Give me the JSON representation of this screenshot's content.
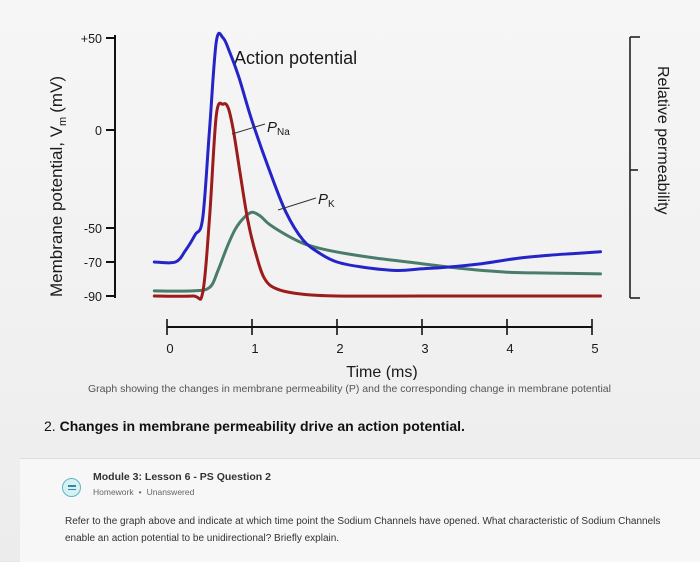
{
  "chart_data": {
    "type": "line",
    "title": "Action potential",
    "xlabel": "Time (ms)",
    "ylabel": "Membrane potential, V",
    "ylabel_subscript": "m",
    "ylabel_unit": "(mV)",
    "right_label": "Relative permeability",
    "x_ticks": [
      "0",
      "1",
      "2",
      "3",
      "4",
      "5"
    ],
    "y_ticks": [
      "+50",
      "0",
      "-50",
      "-70",
      "-90"
    ],
    "xlim": [
      -0.15,
      5.1
    ],
    "ylim": [
      -90,
      50
    ],
    "series": [
      {
        "name": "Action potential",
        "color": "#2424c8",
        "x": [
          -0.15,
          0.1,
          0.22,
          0.33,
          0.42,
          0.5,
          0.58,
          0.66,
          0.74,
          0.85,
          1.0,
          1.2,
          1.4,
          1.6,
          1.8,
          2.0,
          2.3,
          2.7,
          3.0,
          3.3,
          3.7,
          4.1,
          4.5,
          4.8,
          5.1
        ],
        "y": [
          -70,
          -70,
          -63,
          -54,
          -45,
          0,
          48,
          50,
          42,
          28,
          5,
          -20,
          -42,
          -57,
          -65,
          -70,
          -73,
          -75,
          -74,
          -73,
          -71,
          -68,
          -66,
          -65,
          -64
        ]
      },
      {
        "name": "P",
        "subscript": "Na",
        "label": "PNa",
        "color": "#9c1c1c",
        "x": [
          -0.15,
          0.3,
          0.42,
          0.5,
          0.58,
          0.66,
          0.72,
          0.78,
          0.86,
          0.95,
          1.05,
          1.15,
          1.3,
          1.6,
          2.0,
          3.0,
          4.0,
          5.1
        ],
        "y": [
          -90,
          -90,
          -88,
          -45,
          8,
          14,
          12,
          0,
          -22,
          -46,
          -66,
          -80,
          -86,
          -89,
          -90,
          -90,
          -90,
          -90
        ]
      },
      {
        "name": "P",
        "subscript": "K",
        "label": "PK",
        "color": "#4a7c6c",
        "x": [
          -0.15,
          0.3,
          0.5,
          0.6,
          0.7,
          0.8,
          0.9,
          1.0,
          1.1,
          1.2,
          1.4,
          1.6,
          1.8,
          2.1,
          2.5,
          3.0,
          3.5,
          4.0,
          4.5,
          5.1
        ],
        "y": [
          -87,
          -87,
          -85,
          -75,
          -62,
          -51,
          -45,
          -42,
          -44,
          -48,
          -54,
          -59,
          -62,
          -65,
          -68,
          -71,
          -74,
          -76,
          -76.5,
          -77
        ]
      }
    ],
    "annotations": {
      "pna_label": "P",
      "pna_sub": "Na",
      "pk_label": "P",
      "pk_sub": "K"
    },
    "grid": false
  },
  "caption": "Graph showing the changes in membrane permeability (P) and the corresponding change in membrane potential",
  "section": {
    "number": "2.",
    "title": "Changes in membrane permeability drive an action potential."
  },
  "question": {
    "icon": "question-list-icon",
    "title": "Module 3: Lesson 6 - PS Question 2",
    "type": "Homework",
    "status": "Unanswered",
    "text": "Refer to the graph above and indicate at which time point the Sodium Channels have opened. What characteristic of Sodium Channels enable an action potential to be unidirectional? Briefly explain."
  }
}
